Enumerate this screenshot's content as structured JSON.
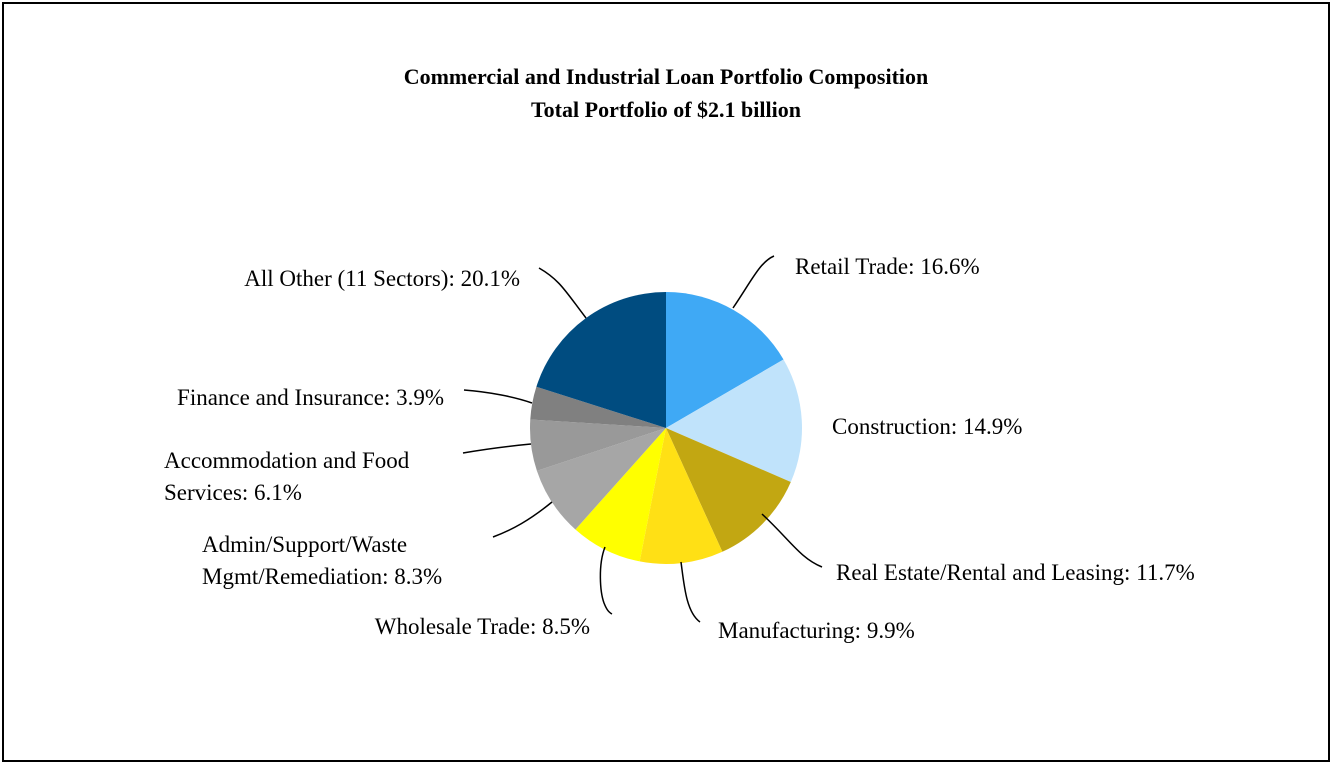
{
  "chart_data": {
    "type": "pie",
    "title": "Commercial and Industrial Loan Portfolio Composition",
    "subtitle": "Total Portfolio of $2.1 billion",
    "start_angle_deg": 0,
    "direction": "clockwise",
    "slices": [
      {
        "lines": [
          "Retail Trade: 16.6%"
        ],
        "value": 16.6,
        "color": "#3FA9F5"
      },
      {
        "lines": [
          "Construction: 14.9%"
        ],
        "value": 14.9,
        "color": "#C0E3FB"
      },
      {
        "lines": [
          "Real Estate/Rental and Leasing: 11.7%"
        ],
        "value": 11.7,
        "color": "#C2A712"
      },
      {
        "lines": [
          "Manufacturing: 9.9%"
        ],
        "value": 9.9,
        "color": "#FFE015"
      },
      {
        "lines": [
          "Wholesale Trade: 8.5%"
        ],
        "value": 8.5,
        "color": "#FFFF00"
      },
      {
        "lines": [
          "Admin/Support/Waste",
          "Mgmt/Remediation: 8.3%"
        ],
        "value": 8.3,
        "color": "#A6A6A6"
      },
      {
        "lines": [
          "Accommodation and Food",
          "Services: 6.1%"
        ],
        "value": 6.1,
        "color": "#999999"
      },
      {
        "lines": [
          "Finance and Insurance: 3.9%"
        ],
        "value": 3.9,
        "color": "#808080"
      },
      {
        "lines": [
          "All Other (11 Sectors): 20.1%"
        ],
        "value": 20.1,
        "color": "#004C80"
      }
    ]
  }
}
